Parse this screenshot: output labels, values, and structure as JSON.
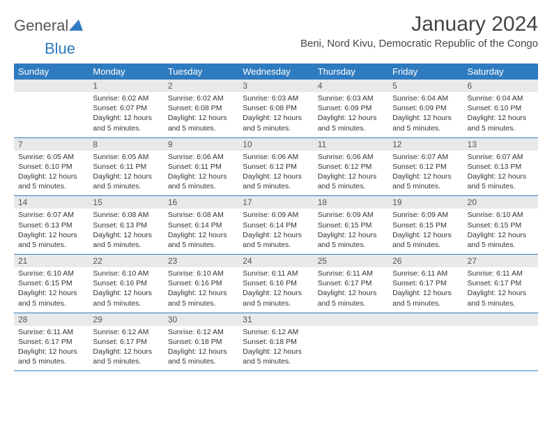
{
  "logo": {
    "text1": "General",
    "text2": "Blue"
  },
  "title": "January 2024",
  "subtitle": "Beni, Nord Kivu, Democratic Republic of the Congo",
  "colors": {
    "header_bg": "#2f7bbf",
    "header_text": "#ffffff",
    "daynum_bg": "#e9e9e9",
    "row_divider": "#2f7bbf",
    "logo_blue": "#2f7bbf"
  },
  "daynames": [
    "Sunday",
    "Monday",
    "Tuesday",
    "Wednesday",
    "Thursday",
    "Friday",
    "Saturday"
  ],
  "start_offset": 1,
  "days": [
    {
      "n": 1,
      "sr": "6:02 AM",
      "ss": "6:07 PM",
      "dl": "12 hours and 5 minutes."
    },
    {
      "n": 2,
      "sr": "6:02 AM",
      "ss": "6:08 PM",
      "dl": "12 hours and 5 minutes."
    },
    {
      "n": 3,
      "sr": "6:03 AM",
      "ss": "6:08 PM",
      "dl": "12 hours and 5 minutes."
    },
    {
      "n": 4,
      "sr": "6:03 AM",
      "ss": "6:09 PM",
      "dl": "12 hours and 5 minutes."
    },
    {
      "n": 5,
      "sr": "6:04 AM",
      "ss": "6:09 PM",
      "dl": "12 hours and 5 minutes."
    },
    {
      "n": 6,
      "sr": "6:04 AM",
      "ss": "6:10 PM",
      "dl": "12 hours and 5 minutes."
    },
    {
      "n": 7,
      "sr": "6:05 AM",
      "ss": "6:10 PM",
      "dl": "12 hours and 5 minutes."
    },
    {
      "n": 8,
      "sr": "6:05 AM",
      "ss": "6:11 PM",
      "dl": "12 hours and 5 minutes."
    },
    {
      "n": 9,
      "sr": "6:06 AM",
      "ss": "6:11 PM",
      "dl": "12 hours and 5 minutes."
    },
    {
      "n": 10,
      "sr": "6:06 AM",
      "ss": "6:12 PM",
      "dl": "12 hours and 5 minutes."
    },
    {
      "n": 11,
      "sr": "6:06 AM",
      "ss": "6:12 PM",
      "dl": "12 hours and 5 minutes."
    },
    {
      "n": 12,
      "sr": "6:07 AM",
      "ss": "6:12 PM",
      "dl": "12 hours and 5 minutes."
    },
    {
      "n": 13,
      "sr": "6:07 AM",
      "ss": "6:13 PM",
      "dl": "12 hours and 5 minutes."
    },
    {
      "n": 14,
      "sr": "6:07 AM",
      "ss": "6:13 PM",
      "dl": "12 hours and 5 minutes."
    },
    {
      "n": 15,
      "sr": "6:08 AM",
      "ss": "6:13 PM",
      "dl": "12 hours and 5 minutes."
    },
    {
      "n": 16,
      "sr": "6:08 AM",
      "ss": "6:14 PM",
      "dl": "12 hours and 5 minutes."
    },
    {
      "n": 17,
      "sr": "6:09 AM",
      "ss": "6:14 PM",
      "dl": "12 hours and 5 minutes."
    },
    {
      "n": 18,
      "sr": "6:09 AM",
      "ss": "6:15 PM",
      "dl": "12 hours and 5 minutes."
    },
    {
      "n": 19,
      "sr": "6:09 AM",
      "ss": "6:15 PM",
      "dl": "12 hours and 5 minutes."
    },
    {
      "n": 20,
      "sr": "6:10 AM",
      "ss": "6:15 PM",
      "dl": "12 hours and 5 minutes."
    },
    {
      "n": 21,
      "sr": "6:10 AM",
      "ss": "6:15 PM",
      "dl": "12 hours and 5 minutes."
    },
    {
      "n": 22,
      "sr": "6:10 AM",
      "ss": "6:16 PM",
      "dl": "12 hours and 5 minutes."
    },
    {
      "n": 23,
      "sr": "6:10 AM",
      "ss": "6:16 PM",
      "dl": "12 hours and 5 minutes."
    },
    {
      "n": 24,
      "sr": "6:11 AM",
      "ss": "6:16 PM",
      "dl": "12 hours and 5 minutes."
    },
    {
      "n": 25,
      "sr": "6:11 AM",
      "ss": "6:17 PM",
      "dl": "12 hours and 5 minutes."
    },
    {
      "n": 26,
      "sr": "6:11 AM",
      "ss": "6:17 PM",
      "dl": "12 hours and 5 minutes."
    },
    {
      "n": 27,
      "sr": "6:11 AM",
      "ss": "6:17 PM",
      "dl": "12 hours and 5 minutes."
    },
    {
      "n": 28,
      "sr": "6:11 AM",
      "ss": "6:17 PM",
      "dl": "12 hours and 5 minutes."
    },
    {
      "n": 29,
      "sr": "6:12 AM",
      "ss": "6:17 PM",
      "dl": "12 hours and 5 minutes."
    },
    {
      "n": 30,
      "sr": "6:12 AM",
      "ss": "6:18 PM",
      "dl": "12 hours and 5 minutes."
    },
    {
      "n": 31,
      "sr": "6:12 AM",
      "ss": "6:18 PM",
      "dl": "12 hours and 5 minutes."
    }
  ],
  "labels": {
    "sunrise": "Sunrise:",
    "sunset": "Sunset:",
    "daylight": "Daylight:"
  }
}
